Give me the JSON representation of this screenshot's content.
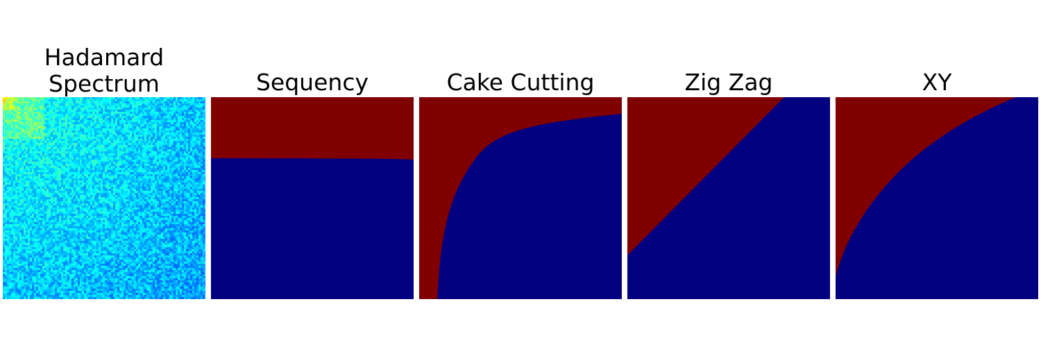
{
  "panels": [
    {
      "id": "hadamard",
      "title": "Hadamard\nSpectrum",
      "kind": "noise-spectrum"
    },
    {
      "id": "sequency",
      "title": "Sequency",
      "kind": "mask"
    },
    {
      "id": "cake",
      "title": "Cake Cutting",
      "kind": "mask"
    },
    {
      "id": "zigzag",
      "title": "Zig Zag",
      "kind": "mask"
    },
    {
      "id": "xy",
      "title": "XY",
      "kind": "mask"
    }
  ],
  "colors": {
    "mask_top": "#800000",
    "mask_bottom": "#000080"
  }
}
